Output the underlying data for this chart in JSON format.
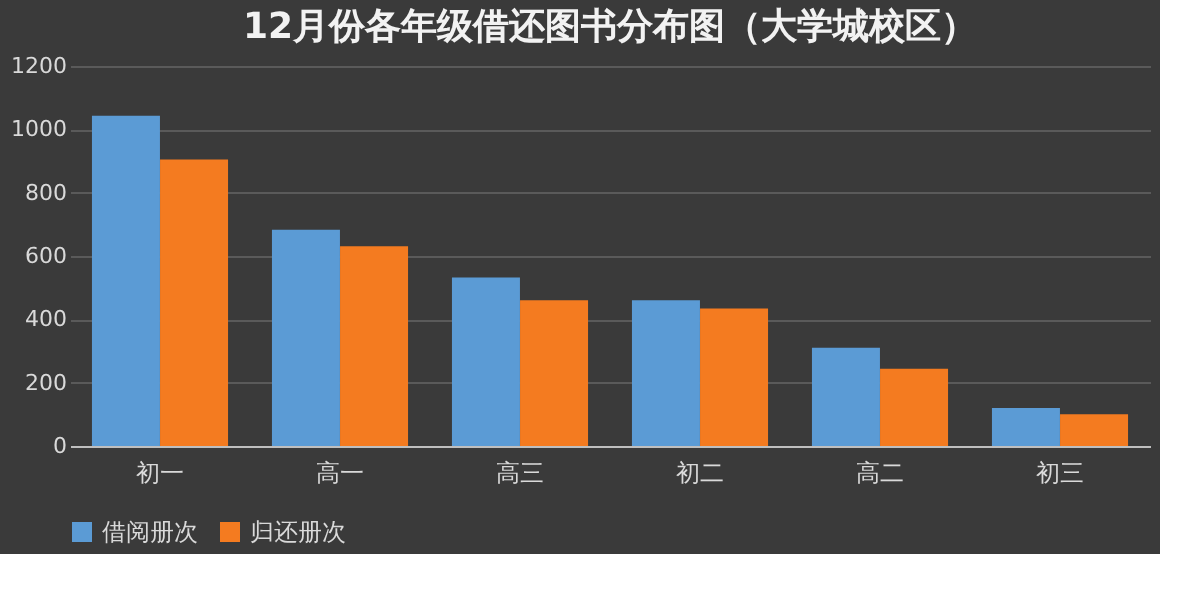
{
  "chart_data": {
    "type": "bar",
    "title": "12月份各年级借还图书分布图（大学城校区）",
    "categories": [
      "初一",
      "高一",
      "高三",
      "初二",
      "高二",
      "初三"
    ],
    "series": [
      {
        "name": "借阅册次",
        "color": "#5b9bd5",
        "values": [
          1043,
          683,
          532,
          460,
          310,
          120
        ]
      },
      {
        "name": "归还册次",
        "color": "#f47b20",
        "values": [
          905,
          631,
          460,
          434,
          244,
          100
        ]
      }
    ],
    "ylim": [
      0,
      1200
    ],
    "yticks": [
      0,
      200,
      400,
      600,
      800,
      1000,
      1200
    ],
    "grid": "y",
    "legend": "bottom"
  }
}
